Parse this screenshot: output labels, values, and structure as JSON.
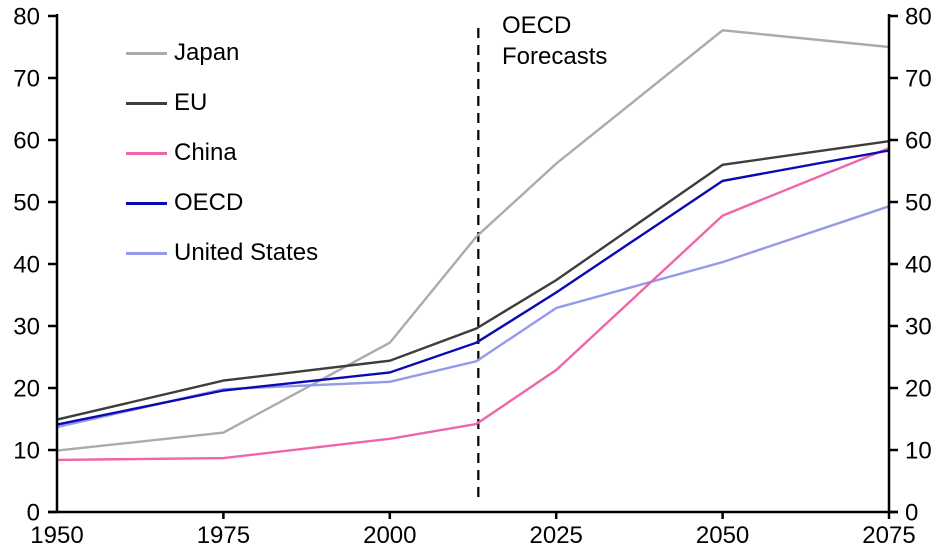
{
  "chart_data": {
    "type": "line",
    "title": "",
    "xlabel": "",
    "ylabel": "",
    "xlim": [
      1950,
      2075
    ],
    "ylim": [
      0,
      80
    ],
    "grid": false,
    "dual_y_axis": true,
    "x": [
      1950,
      1975,
      2000,
      2013,
      2025,
      2050,
      2075
    ],
    "x_ticks": [
      1950,
      1975,
      2000,
      2025,
      2050,
      2075
    ],
    "x_tick_labels": [
      "1950",
      "1975",
      "2000",
      "2025",
      "2050",
      "2075"
    ],
    "y_ticks": [
      0,
      10,
      20,
      30,
      40,
      50,
      60,
      70,
      80
    ],
    "y_tick_labels": [
      "0",
      "10",
      "20",
      "30",
      "40",
      "50",
      "60",
      "70",
      "80"
    ],
    "series": [
      {
        "name": "Japan",
        "color": "#ababab",
        "values": [
          9.9,
          12.8,
          27.3,
          44.4,
          56.2,
          77.7,
          75.0
        ]
      },
      {
        "name": "EU",
        "color": "#3d3d3d",
        "values": [
          14.9,
          21.2,
          24.4,
          29.6,
          37.4,
          56.0,
          59.8
        ]
      },
      {
        "name": "China",
        "color": "#f064aa",
        "values": [
          8.4,
          8.7,
          11.8,
          14.2,
          22.9,
          47.8,
          58.7
        ]
      },
      {
        "name": "OECD",
        "color": "#0a0ab4",
        "values": [
          14.1,
          19.6,
          22.5,
          27.3,
          35.4,
          53.4,
          58.3
        ]
      },
      {
        "name": "United States",
        "color": "#9599ec",
        "values": [
          13.7,
          19.8,
          21.0,
          24.3,
          32.9,
          40.3,
          49.3
        ]
      }
    ],
    "forecast_line": {
      "year": 2013.3
    },
    "legend_position": "top-left"
  },
  "annotation": {
    "line1": "OECD",
    "line2": "Forecasts"
  },
  "colors": {
    "axis": "#000000",
    "text": "#000000",
    "forecast_dash": "#000000"
  }
}
